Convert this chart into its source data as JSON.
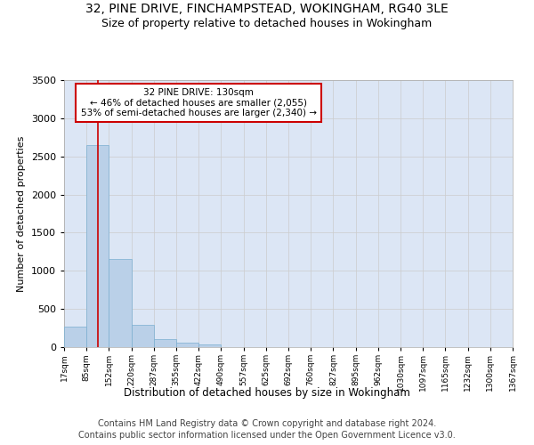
{
  "title_line1": "32, PINE DRIVE, FINCHAMPSTEAD, WOKINGHAM, RG40 3LE",
  "title_line2": "Size of property relative to detached houses in Wokingham",
  "xlabel": "Distribution of detached houses by size in Wokingham",
  "ylabel": "Number of detached properties",
  "bar_color": "#bad0e8",
  "bar_edge_color": "#7aaed0",
  "bar_values": [
    270,
    2650,
    1150,
    290,
    100,
    55,
    35,
    0,
    0,
    0,
    0,
    0,
    0,
    0,
    0,
    0,
    0,
    0,
    0,
    0
  ],
  "categories": [
    "17sqm",
    "85sqm",
    "152sqm",
    "220sqm",
    "287sqm",
    "355sqm",
    "422sqm",
    "490sqm",
    "557sqm",
    "625sqm",
    "692sqm",
    "760sqm",
    "827sqm",
    "895sqm",
    "962sqm",
    "1030sqm",
    "1097sqm",
    "1165sqm",
    "1232sqm",
    "1300sqm",
    "1367sqm"
  ],
  "ylim": [
    0,
    3500
  ],
  "yticks": [
    0,
    500,
    1000,
    1500,
    2000,
    2500,
    3000,
    3500
  ],
  "annotation_text": "32 PINE DRIVE: 130sqm\n← 46% of detached houses are smaller (2,055)\n53% of semi-detached houses are larger (2,340) →",
  "annotation_box_color": "#ffffff",
  "annotation_box_edge": "#cc0000",
  "vline_x": 1.5,
  "grid_color": "#cccccc",
  "bg_color": "#dce6f5",
  "footer_line1": "Contains HM Land Registry data © Crown copyright and database right 2024.",
  "footer_line2": "Contains public sector information licensed under the Open Government Licence v3.0.",
  "title_fontsize": 10,
  "subtitle_fontsize": 9,
  "footer_fontsize": 7
}
